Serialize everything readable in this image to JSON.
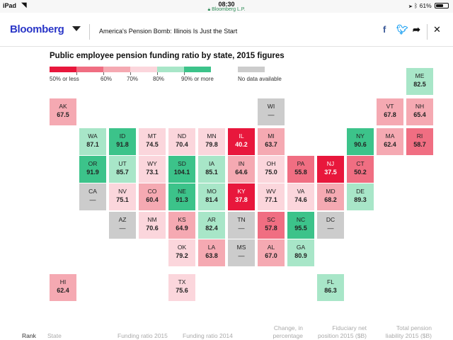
{
  "status_bar": {
    "device": "iPad",
    "time": "08:30",
    "url": "Bloomberg L.P.",
    "battery": "61%",
    "battery_level": 0.61,
    "icons": [
      "wifi-icon",
      "lock-icon",
      "location-icon",
      "bluetooth-icon",
      "battery-icon"
    ]
  },
  "header": {
    "logo": "Bloomberg",
    "headline": "America's Pension Bomb: Illinois Is Just the Start",
    "icons": [
      "menu-caret-icon",
      "facebook-icon",
      "twitter-icon",
      "share-icon",
      "close-icon"
    ]
  },
  "chart": {
    "title": "Public employee pension funding ratio by state, 2015 figures",
    "legend": {
      "labels": [
        "50% or less",
        "60%",
        "70%",
        "80%",
        "90% or more"
      ],
      "no_data_label": "No data available",
      "colors": [
        "#e8173c",
        "#f06e82",
        "#f5a9b2",
        "#fbd6dc",
        "#a8e6c8",
        "#3cc38a"
      ],
      "no_data_color": "#cccccc"
    }
  },
  "chart_data": {
    "type": "heatmap",
    "title": "Public employee pension funding ratio by state, 2015 figures",
    "value_unit": "%",
    "states": [
      {
        "abbr": "ME",
        "value": 82.5
      },
      {
        "abbr": "AK",
        "value": 67.5
      },
      {
        "abbr": "WI",
        "value": null
      },
      {
        "abbr": "VT",
        "value": 67.8
      },
      {
        "abbr": "NH",
        "value": 65.4
      },
      {
        "abbr": "WA",
        "value": 87.1
      },
      {
        "abbr": "ID",
        "value": 91.8
      },
      {
        "abbr": "MT",
        "value": 74.5
      },
      {
        "abbr": "ND",
        "value": 70.4
      },
      {
        "abbr": "MN",
        "value": 79.8
      },
      {
        "abbr": "IL",
        "value": 40.2
      },
      {
        "abbr": "MI",
        "value": 63.7
      },
      {
        "abbr": "NY",
        "value": 90.6
      },
      {
        "abbr": "MA",
        "value": 62.4
      },
      {
        "abbr": "RI",
        "value": 58.7
      },
      {
        "abbr": "OR",
        "value": 91.9
      },
      {
        "abbr": "UT",
        "value": 85.7
      },
      {
        "abbr": "WY",
        "value": 73.1
      },
      {
        "abbr": "SD",
        "value": 104.1
      },
      {
        "abbr": "IA",
        "value": 85.1
      },
      {
        "abbr": "IN",
        "value": 64.6
      },
      {
        "abbr": "OH",
        "value": 75.0
      },
      {
        "abbr": "PA",
        "value": 55.8
      },
      {
        "abbr": "NJ",
        "value": 37.5
      },
      {
        "abbr": "CT",
        "value": 50.2
      },
      {
        "abbr": "CA",
        "value": null
      },
      {
        "abbr": "NV",
        "value": 75.1
      },
      {
        "abbr": "CO",
        "value": 60.4
      },
      {
        "abbr": "NE",
        "value": 91.3
      },
      {
        "abbr": "MO",
        "value": 81.4
      },
      {
        "abbr": "KY",
        "value": 37.8
      },
      {
        "abbr": "WV",
        "value": 77.1
      },
      {
        "abbr": "VA",
        "value": 74.6
      },
      {
        "abbr": "MD",
        "value": 68.2
      },
      {
        "abbr": "DE",
        "value": 89.3
      },
      {
        "abbr": "AZ",
        "value": null
      },
      {
        "abbr": "NM",
        "value": 70.6
      },
      {
        "abbr": "KS",
        "value": 64.9
      },
      {
        "abbr": "AR",
        "value": 82.4
      },
      {
        "abbr": "TN",
        "value": null
      },
      {
        "abbr": "SC",
        "value": 57.8
      },
      {
        "abbr": "NC",
        "value": 95.5
      },
      {
        "abbr": "DC",
        "value": null
      },
      {
        "abbr": "OK",
        "value": 79.2
      },
      {
        "abbr": "LA",
        "value": 63.8
      },
      {
        "abbr": "MS",
        "value": null
      },
      {
        "abbr": "AL",
        "value": 67.0
      },
      {
        "abbr": "GA",
        "value": 80.9
      },
      {
        "abbr": "HI",
        "value": 62.4
      },
      {
        "abbr": "TX",
        "value": 75.6
      },
      {
        "abbr": "FL",
        "value": 86.3
      }
    ],
    "no_data_text": "—"
  },
  "table_header": {
    "rank": "Rank",
    "state": "State",
    "ratio_2015": "Funding ratio 2015",
    "ratio_2014": "Funding ratio 2014",
    "change": "Change, in percentage points",
    "fiduciary": "Fiduciary net position 2015 ($B)",
    "liability": "Total pension liability 2015 ($B)"
  }
}
